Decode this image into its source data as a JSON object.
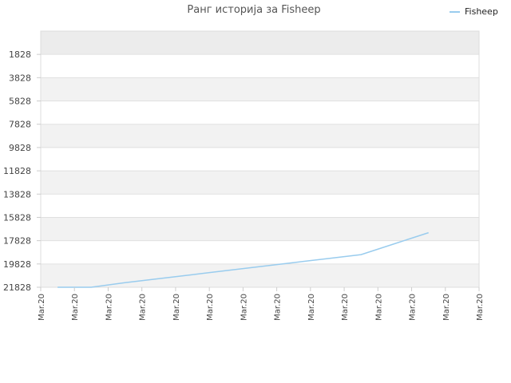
{
  "chart_data": {
    "type": "line",
    "title": "Ранг историја за Fisheep",
    "xlabel": "",
    "ylabel": "",
    "x_tick_labels": [
      "Mar.20",
      "Mar.20",
      "Mar.20",
      "Mar.20",
      "Mar.20",
      "Mar.20",
      "Mar.20",
      "Mar.20",
      "Mar.20",
      "Mar.20",
      "Mar.20",
      "Mar.20",
      "Mar.20",
      "Mar.20"
    ],
    "y_ticks": [
      1828,
      3828,
      5828,
      7828,
      9828,
      11828,
      13828,
      15828,
      17828,
      19828,
      21828
    ],
    "ylim": [
      -170,
      21828
    ],
    "y_inverted": true,
    "grid": true,
    "legend": "top-right",
    "series": [
      {
        "name": "Fisheep",
        "color": "#99ccee",
        "x": [
          0.5,
          1.5,
          2.5,
          3.5,
          4.5,
          5.5,
          6.5,
          7.5,
          8.5,
          9.5,
          10.5,
          11.5
        ],
        "values": [
          21828,
          21828,
          21428,
          21085,
          20742,
          20399,
          20056,
          19713,
          19370,
          19027,
          18084,
          17141
        ]
      }
    ]
  },
  "colors": {
    "band": "#f2f2f2",
    "band_top": "#ececec",
    "grid": "#e0e0e0",
    "axis": "#cccccc",
    "text": "#444444"
  }
}
